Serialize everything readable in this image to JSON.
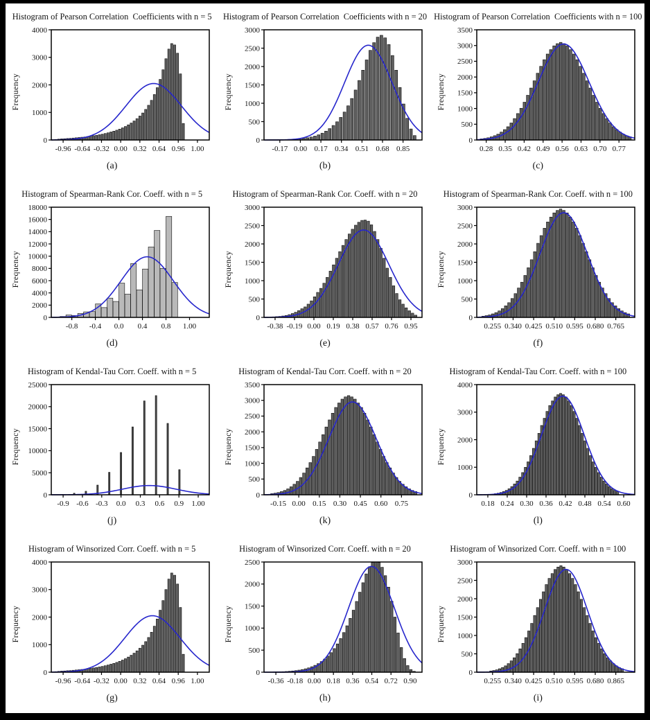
{
  "figure": {
    "background": "#ffffff",
    "frame_color": "#000000",
    "axis_color": "#000000",
    "text_color": "#141414",
    "curve_color": "#2626cc"
  },
  "chart_data": [
    {
      "type": "bar",
      "label": "(a)",
      "title": "Histogram of Pearson Correlation  Coefficients with n = 5",
      "ylabel": "Frequency",
      "ymax": 4000,
      "yticks": [
        0,
        1000,
        2000,
        3000,
        4000
      ],
      "xtick_labels": [
        "-0.96",
        "-0.64",
        "-0.32",
        "0.00",
        "0.32",
        "0.64",
        "0.96",
        "1.00"
      ],
      "xtick_span": [
        0.075,
        0.925
      ],
      "bar_color": "#5f5f5f",
      "bar_width_ratio": 0.75,
      "bar_span": [
        0.02,
        0.845
      ],
      "bar_heights": [
        20,
        30,
        40,
        45,
        55,
        60,
        70,
        80,
        90,
        100,
        110,
        125,
        140,
        155,
        170,
        190,
        210,
        235,
        260,
        290,
        320,
        355,
        395,
        440,
        490,
        550,
        615,
        690,
        775,
        870,
        980,
        1110,
        1260,
        1440,
        1650,
        1900,
        2200,
        2550,
        2950,
        3300,
        3500,
        3450,
        3150,
        2400,
        600
      ],
      "normal_curve": {
        "peak": 2050,
        "center_f": 0.648,
        "sigma_f": 0.175,
        "color": "#2626cc"
      }
    },
    {
      "type": "bar",
      "label": "(b)",
      "title": "Histogram of Pearson Correlation  Coefficients with n = 20",
      "ylabel": "Frequency",
      "ymax": 3000,
      "yticks": [
        0,
        500,
        1000,
        1500,
        2000,
        2500,
        3000
      ],
      "xtick_labels": [
        "-0.17",
        "0.00",
        "0.17",
        "0.34",
        "0.51",
        "0.68",
        "0.85"
      ],
      "xtick_span": [
        0.1,
        0.88
      ],
      "bar_color": "#5f5f5f",
      "bar_width_ratio": 0.75,
      "bar_span": [
        0.03,
        0.965
      ],
      "bar_heights": [
        5,
        6,
        8,
        10,
        12,
        15,
        20,
        26,
        34,
        45,
        60,
        80,
        105,
        140,
        185,
        240,
        310,
        395,
        495,
        615,
        760,
        930,
        1130,
        1360,
        1620,
        1900,
        2180,
        2440,
        2650,
        2800,
        2850,
        2780,
        2600,
        2300,
        1900,
        1430,
        980,
        590,
        300,
        120
      ],
      "normal_curve": {
        "peak": 2580,
        "center_f": 0.66,
        "sigma_f": 0.15,
        "color": "#2626cc"
      }
    },
    {
      "type": "bar",
      "label": "(c)",
      "title": "Histogram of Pearson Correlation  Coefficients with n = 100",
      "ylabel": "Frequency",
      "ymax": 3500,
      "yticks": [
        0,
        500,
        1000,
        1500,
        2000,
        2500,
        3000,
        3500
      ],
      "xtick_labels": [
        "0.28",
        "0.35",
        "0.42",
        "0.49",
        "0.56",
        "0.63",
        "0.70",
        "0.77"
      ],
      "xtick_span": [
        0.06,
        0.9
      ],
      "bar_color": "#5f5f5f",
      "bar_width_ratio": 0.8,
      "bar_span": [
        0.02,
        0.98
      ],
      "bar_heights": [
        35,
        50,
        70,
        100,
        136,
        185,
        250,
        330,
        420,
        540,
        680,
        840,
        1007,
        1200,
        1420,
        1650,
        1880,
        2120,
        2340,
        2550,
        2730,
        2870,
        2990,
        3060,
        3100,
        3060,
        2990,
        2870,
        2730,
        2550,
        2340,
        2120,
        1880,
        1650,
        1420,
        1200,
        1007,
        840,
        680,
        540,
        420,
        330,
        250,
        185,
        136,
        100
      ],
      "normal_curve": {
        "peak": 3050,
        "center_f": 0.55,
        "sigma_f": 0.16,
        "color": "#2626cc"
      }
    },
    {
      "type": "bar",
      "label": "(d)",
      "title": "Histogram of Spearman-Rank Cor. Coeff. with n = 5",
      "ylabel": "Frequency",
      "ymax": 18000,
      "yticks": [
        0,
        2000,
        4000,
        6000,
        8000,
        10000,
        12000,
        14000,
        16000,
        18000
      ],
      "xtick_labels": [
        "-0.8",
        "-0.4",
        "0.0",
        "0.4",
        "0.8",
        "1.00"
      ],
      "xtick_span": [
        0.13,
        0.875
      ],
      "bar_color": "#b9b9b9",
      "bar_width_ratio": 0.97,
      "bar_span": [
        0.055,
        0.8
      ],
      "bar_heights": [
        150,
        400,
        300,
        650,
        900,
        950,
        2200,
        1600,
        3150,
        2600,
        5600,
        3800,
        8800,
        4500,
        7900,
        11500,
        14200,
        8000,
        16500,
        5700
      ],
      "normal_curve": {
        "peak": 9900,
        "center_f": 0.607,
        "sigma_f": 0.165,
        "color": "#2626cc"
      }
    },
    {
      "type": "bar",
      "label": "(e)",
      "title": "Histogram of Spearman-Rank Cor. Coeff. with n = 20",
      "ylabel": "Frequency",
      "ymax": 3000,
      "yticks": [
        0,
        500,
        1000,
        1500,
        2000,
        2500,
        3000
      ],
      "xtick_labels": [
        "-0.38",
        "-0.19",
        "0.00",
        "0.19",
        "0.38",
        "0.57",
        "0.76",
        "0.95"
      ],
      "xtick_span": [
        0.07,
        0.93
      ],
      "bar_color": "#5f5f5f",
      "bar_width_ratio": 0.78,
      "bar_span": [
        0.05,
        0.97
      ],
      "bar_heights": [
        15,
        20,
        27,
        38,
        52,
        75,
        105,
        140,
        185,
        235,
        285,
        360,
        450,
        560,
        680,
        790,
        930,
        1090,
        1260,
        1430,
        1610,
        1790,
        1960,
        2120,
        2270,
        2400,
        2510,
        2590,
        2640,
        2650,
        2620,
        2520,
        2340,
        2120,
        1880,
        1610,
        1340,
        1090,
        860,
        650,
        480,
        360,
        260,
        180,
        115,
        60
      ],
      "normal_curve": {
        "peak": 2380,
        "center_f": 0.63,
        "sigma_f": 0.16,
        "color": "#2626cc"
      }
    },
    {
      "type": "bar",
      "label": "(f)",
      "title": "Histogram of Spearman-Rank Cor. Coeff. with n = 100",
      "ylabel": "Frequency",
      "ymax": 3000,
      "yticks": [
        0,
        500,
        1000,
        1500,
        2000,
        2500,
        3000
      ],
      "xtick_labels": [
        "0.255",
        "0.340",
        "0.425",
        "0.510",
        "0.595",
        "0.680",
        "0.765"
      ],
      "xtick_span": [
        0.1,
        0.88
      ],
      "bar_color": "#5f5f5f",
      "bar_width_ratio": 0.8,
      "bar_span": [
        0.03,
        0.97
      ],
      "bar_heights": [
        33,
        48,
        67,
        95,
        130,
        176,
        238,
        314,
        400,
        514,
        647,
        800,
        958,
        1142,
        1351,
        1570,
        1789,
        2017,
        2227,
        2427,
        2598,
        2731,
        2845,
        2912,
        2950,
        2912,
        2845,
        2731,
        2598,
        2427,
        2227,
        2017,
        1789,
        1570,
        1351,
        1142,
        958,
        800,
        647,
        514,
        400,
        314,
        238,
        176,
        130,
        95
      ],
      "normal_curve": {
        "peak": 2850,
        "center_f": 0.55,
        "sigma_f": 0.15,
        "color": "#2626cc"
      }
    },
    {
      "type": "bar",
      "label": "(j)",
      "title": "Histogram of Kendal-Tau Corr. Coeff. with n = 5",
      "ylabel": "Frequency",
      "ymax": 25000,
      "yticks": [
        0,
        5000,
        10000,
        15000,
        20000,
        25000
      ],
      "xtick_labels": [
        "-0.9",
        "-0.6",
        "-0.3",
        "0.0",
        "0.3",
        "0.6",
        "0.9",
        "1.00"
      ],
      "xtick_span": [
        0.075,
        0.93
      ],
      "bar_color": "#4a4a4a",
      "bar_width_ratio": 0.13,
      "bar_span": [
        0.034,
        0.848
      ],
      "bar_heights": [
        80,
        350,
        800,
        2200,
        5100,
        9600,
        15400,
        21300,
        22500,
        16200,
        5700
      ],
      "normal_curve": {
        "peak": 2100,
        "center_f": 0.62,
        "sigma_f": 0.17,
        "color": "#2626cc"
      }
    },
    {
      "type": "bar",
      "label": "(k)",
      "title": "Histogram of Kendal-Tau Corr. Coeff. with n = 20",
      "ylabel": "Frequency",
      "ymax": 3500,
      "yticks": [
        0,
        500,
        1000,
        1500,
        2000,
        2500,
        3000,
        3500
      ],
      "xtick_labels": [
        "-0.15",
        "0.00",
        "0.15",
        "0.30",
        "0.45",
        "0.60",
        "0.75"
      ],
      "xtick_span": [
        0.09,
        0.87
      ],
      "bar_color": "#5f5f5f",
      "bar_width_ratio": 0.8,
      "bar_span": [
        0.04,
        0.97
      ],
      "bar_heights": [
        36,
        51,
        71,
        102,
        138,
        188,
        254,
        335,
        427,
        549,
        691,
        854,
        1023,
        1219,
        1443,
        1677,
        1910,
        2154,
        2378,
        2591,
        2774,
        2916,
        3038,
        3109,
        3150,
        3109,
        3038,
        2916,
        2774,
        2591,
        2378,
        2154,
        1910,
        1677,
        1443,
        1219,
        1023,
        854,
        691,
        549,
        427,
        335,
        254,
        188,
        138,
        102
      ],
      "normal_curve": {
        "peak": 2950,
        "center_f": 0.56,
        "sigma_f": 0.15,
        "color": "#2626cc"
      }
    },
    {
      "type": "bar",
      "label": "(l)",
      "title": "Histogram of Kendal-Tau Corr. Coeff. with n = 100",
      "ylabel": "Frequency",
      "ymax": 4000,
      "yticks": [
        0,
        1000,
        2000,
        3000,
        4000
      ],
      "xtick_labels": [
        "0.18",
        "0.24",
        "0.30",
        "0.36",
        "0.42",
        "0.48",
        "0.54",
        "0.60"
      ],
      "xtick_span": [
        0.07,
        0.93
      ],
      "bar_color": "#5f5f5f",
      "bar_width_ratio": 0.8,
      "bar_span": [
        0.11,
        0.9
      ],
      "bar_heights": [
        42,
        59,
        83,
        119,
        161,
        220,
        297,
        392,
        499,
        641,
        807,
        997,
        1196,
        1424,
        1686,
        1959,
        2232,
        2517,
        2778,
        3027,
        3241,
        3407,
        3550,
        3633,
        3680,
        3633,
        3550,
        3407,
        3241,
        3027,
        2778,
        2517,
        2232,
        1959,
        1686,
        1424,
        1196,
        997,
        807,
        641,
        499,
        392,
        297,
        220,
        161,
        119
      ],
      "normal_curve": {
        "peak": 3580,
        "center_f": 0.545,
        "sigma_f": 0.135,
        "color": "#2626cc"
      }
    },
    {
      "type": "bar",
      "label": "(g)",
      "title": "Histogram of Winsorized Corr. Coeff. with n = 5",
      "ylabel": "Frequency",
      "ymax": 4000,
      "yticks": [
        0,
        1000,
        2000,
        3000,
        4000
      ],
      "xtick_labels": [
        "-0.96",
        "-0.64",
        "-0.32",
        "0.00",
        "0.32",
        "0.64",
        "0.96",
        "1.00"
      ],
      "xtick_span": [
        0.075,
        0.925
      ],
      "bar_color": "#5f5f5f",
      "bar_width_ratio": 0.75,
      "bar_span": [
        0.02,
        0.845
      ],
      "bar_heights": [
        20,
        30,
        40,
        45,
        55,
        60,
        70,
        80,
        90,
        100,
        110,
        125,
        140,
        155,
        170,
        190,
        210,
        235,
        260,
        290,
        320,
        355,
        395,
        440,
        490,
        550,
        615,
        690,
        775,
        870,
        980,
        1110,
        1260,
        1450,
        1670,
        1930,
        2250,
        2600,
        3000,
        3380,
        3600,
        3520,
        3200,
        2350,
        650
      ],
      "normal_curve": {
        "peak": 2050,
        "center_f": 0.64,
        "sigma_f": 0.175,
        "color": "#2626cc"
      }
    },
    {
      "type": "bar",
      "label": "(h)",
      "title": "Histogram of Winsorized Corr. Coeff. with n = 20",
      "ylabel": "Frequency",
      "ymax": 2500,
      "yticks": [
        0,
        500,
        1000,
        1500,
        2000,
        2500
      ],
      "xtick_labels": [
        "-0.36",
        "-0.18",
        "0.00",
        "0.18",
        "0.36",
        "0.54",
        "0.72",
        "0.90"
      ],
      "xtick_span": [
        0.075,
        0.925
      ],
      "bar_color": "#5f5f5f",
      "bar_width_ratio": 0.78,
      "bar_span": [
        0.03,
        0.96
      ],
      "bar_heights": [
        4,
        5,
        7,
        9,
        12,
        16,
        21,
        28,
        36,
        47,
        60,
        77,
        98,
        124,
        156,
        195,
        242,
        298,
        365,
        444,
        536,
        642,
        763,
        900,
        1053,
        1222,
        1407,
        1605,
        1815,
        2030,
        2230,
        2390,
        2490,
        2530,
        2490,
        2380,
        2190,
        1930,
        1610,
        1250,
        890,
        560,
        310,
        150,
        60,
        20
      ],
      "normal_curve": {
        "peak": 2400,
        "center_f": 0.68,
        "sigma_f": 0.145,
        "color": "#2626cc"
      }
    },
    {
      "type": "bar",
      "label": "(i)",
      "title": "Histogram of Winsorized Corr. Coeff. with n = 100",
      "ylabel": "Frequency",
      "ymax": 3000,
      "yticks": [
        0,
        500,
        1000,
        1500,
        2000,
        2500,
        3000
      ],
      "xtick_labels": [
        "0.255",
        "0.340",
        "0.425",
        "0.510",
        "0.595",
        "0.680",
        "0.865"
      ],
      "xtick_span": [
        0.1,
        0.88
      ],
      "bar_color": "#5f5f5f",
      "bar_width_ratio": 0.8,
      "bar_span": [
        0.08,
        0.93
      ],
      "bar_heights": [
        33,
        47,
        65,
        94,
        127,
        173,
        234,
        309,
        393,
        505,
        636,
        786,
        942,
        1123,
        1329,
        1544,
        1759,
        1984,
        2189,
        2386,
        2554,
        2685,
        2797,
        2863,
        2900,
        2863,
        2797,
        2685,
        2554,
        2386,
        2189,
        1984,
        1759,
        1544,
        1329,
        1123,
        942,
        786,
        636,
        505,
        393,
        309,
        234,
        173,
        127,
        94
      ],
      "normal_curve": {
        "peak": 2800,
        "center_f": 0.565,
        "sigma_f": 0.135,
        "color": "#2626cc"
      }
    }
  ]
}
